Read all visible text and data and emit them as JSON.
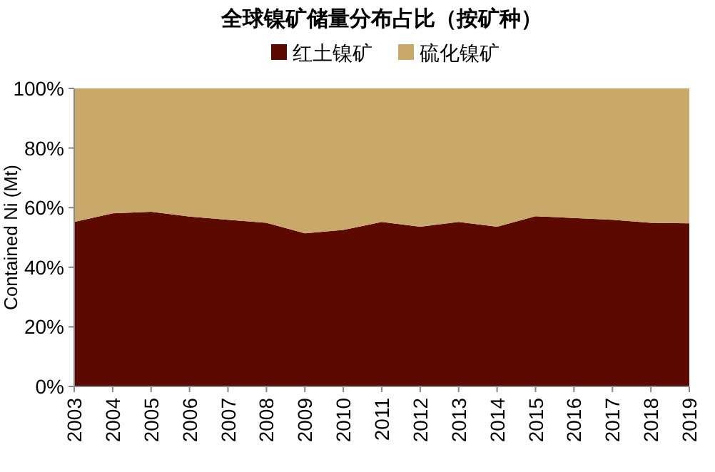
{
  "chart_data": {
    "type": "area",
    "title": "全球镍矿储量分布占比（按矿种）",
    "ylabel": "Contained Ni (Mt)",
    "stacked": true,
    "legend": "top",
    "categories": [
      "2003",
      "2004",
      "2005",
      "2006",
      "2007",
      "2008",
      "2009",
      "2010",
      "2011",
      "2012",
      "2013",
      "2014",
      "2015",
      "2016",
      "2017",
      "2018",
      "2019"
    ],
    "series": [
      {
        "name": "红土镍矿",
        "color": "#5c0a00",
        "values": [
          55.2,
          58.1,
          58.6,
          57.0,
          55.9,
          54.9,
          51.4,
          52.5,
          55.2,
          53.6,
          55.2,
          53.6,
          57.1,
          56.5,
          55.9,
          54.9,
          54.7
        ]
      },
      {
        "name": "硫化镍矿",
        "color": "#c8a96a",
        "values": [
          44.8,
          41.9,
          41.4,
          43.0,
          44.1,
          45.1,
          48.6,
          47.5,
          44.8,
          46.4,
          44.8,
          46.4,
          42.9,
          43.5,
          44.1,
          45.1,
          45.3
        ]
      }
    ],
    "ylim": [
      0,
      100
    ],
    "yticks": [
      {
        "value": 0,
        "label": "0%"
      },
      {
        "value": 20,
        "label": "20%"
      },
      {
        "value": 40,
        "label": "40%"
      },
      {
        "value": 60,
        "label": "60%"
      },
      {
        "value": 80,
        "label": "80%"
      },
      {
        "value": 100,
        "label": "100%"
      }
    ]
  }
}
